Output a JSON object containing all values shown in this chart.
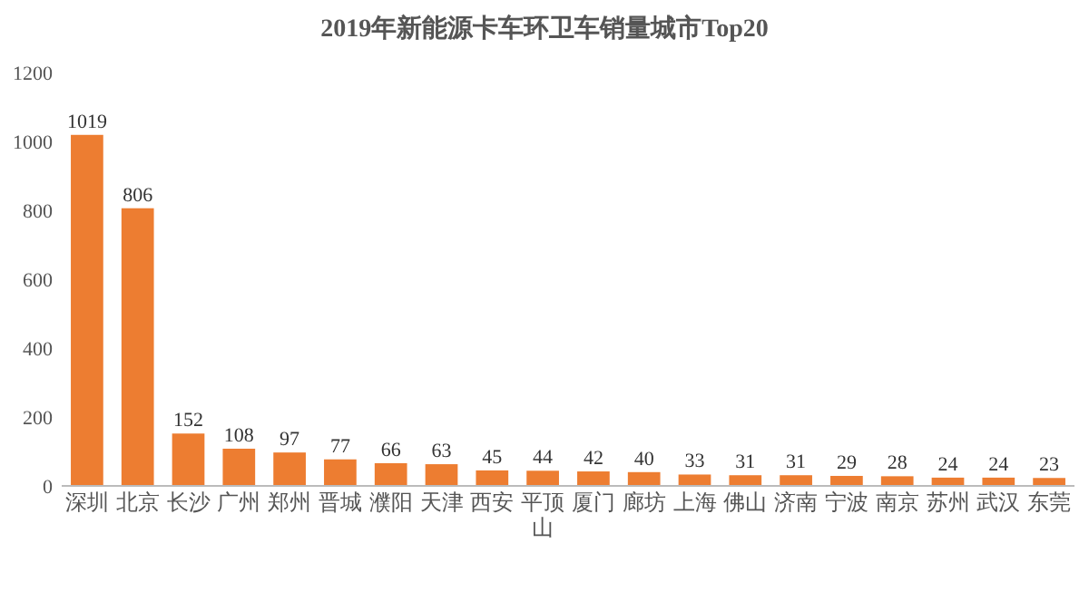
{
  "chart_data": {
    "type": "bar",
    "title": "2019年新能源卡车环卫车销量城市Top20",
    "categories": [
      "深圳",
      "北京",
      "长沙",
      "广州",
      "郑州",
      "晋城",
      "濮阳",
      "天津",
      "西安",
      "平顶山",
      "厦门",
      "廊坊",
      "上海",
      "佛山",
      "济南",
      "宁波",
      "南京",
      "苏州",
      "武汉",
      "东莞"
    ],
    "values": [
      1019,
      806,
      152,
      108,
      97,
      77,
      66,
      63,
      45,
      44,
      42,
      40,
      33,
      31,
      31,
      29,
      28,
      24,
      24,
      23
    ],
    "color": "#ed7d31",
    "ylim": [
      0,
      1200
    ],
    "yticks": [
      0,
      200,
      400,
      600,
      800,
      1000,
      1200
    ],
    "grid": false,
    "data_labels": true
  }
}
